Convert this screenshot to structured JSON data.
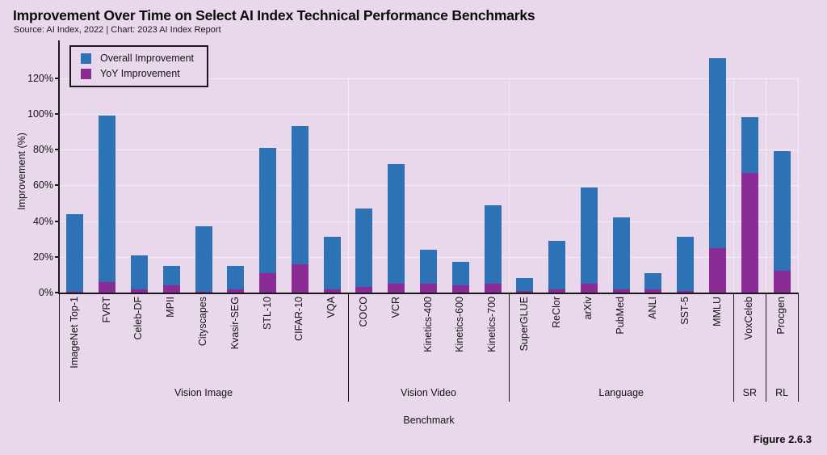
{
  "header": {
    "title": "Improvement Over Time on Select AI Index Technical Performance Benchmarks",
    "subtitle": "Source: AI Index, 2022 | Chart: 2023 AI Index Report"
  },
  "figure_label": "Figure 2.6.3",
  "colors": {
    "overall": "#2d72b5",
    "yoy": "#8b2b96",
    "background": "#e9d7ec"
  },
  "legend": {
    "items": [
      {
        "label": "Overall Improvement",
        "series": "overall"
      },
      {
        "label": "YoY Improvement",
        "series": "yoy"
      }
    ]
  },
  "chart_data": {
    "type": "bar",
    "subtype": "overlaid-stacked",
    "title": "Improvement Over Time on Select AI Index Technical Performance Benchmarks",
    "xlabel": "Benchmark",
    "ylabel": "Improvement (%)",
    "ylim": [
      0,
      135
    ],
    "yticks": [
      0,
      20,
      40,
      60,
      80,
      100,
      120
    ],
    "ytick_suffix": "%",
    "grid": true,
    "legend_position": "top-left",
    "series_names": [
      "Overall Improvement",
      "YoY Improvement"
    ],
    "groups": [
      {
        "name": "Vision Image",
        "benchmarks": [
          {
            "label": "ImageNet Top-1",
            "overall": 44,
            "yoy": 0.5
          },
          {
            "label": "FVRT",
            "overall": 99,
            "yoy": 6
          },
          {
            "label": "Celeb-DF",
            "overall": 21,
            "yoy": 2
          },
          {
            "label": "MPII",
            "overall": 15,
            "yoy": 4
          },
          {
            "label": "Cityscapes",
            "overall": 37,
            "yoy": 0.5
          },
          {
            "label": "Kvasir-SEG",
            "overall": 15,
            "yoy": 2
          },
          {
            "label": "STL-10",
            "overall": 81,
            "yoy": 11
          },
          {
            "label": "CIFAR-10",
            "overall": 93,
            "yoy": 16
          },
          {
            "label": "VQA",
            "overall": 31,
            "yoy": 2
          }
        ]
      },
      {
        "name": "Vision Video",
        "benchmarks": [
          {
            "label": "COCO",
            "overall": 47,
            "yoy": 3
          },
          {
            "label": "VCR",
            "overall": 72,
            "yoy": 5
          },
          {
            "label": "Kinetics-400",
            "overall": 24,
            "yoy": 5
          },
          {
            "label": "Kinetics-600",
            "overall": 17,
            "yoy": 4
          },
          {
            "label": "Kinetics-700",
            "overall": 49,
            "yoy": 5
          }
        ]
      },
      {
        "name": "Language",
        "benchmarks": [
          {
            "label": "SuperGLUE",
            "overall": 8,
            "yoy": 1
          },
          {
            "label": "ReClor",
            "overall": 29,
            "yoy": 2
          },
          {
            "label": "arXiv",
            "overall": 59,
            "yoy": 5
          },
          {
            "label": "PubMed",
            "overall": 42,
            "yoy": 2
          },
          {
            "label": "ANLI",
            "overall": 11,
            "yoy": 2
          },
          {
            "label": "SST-5",
            "overall": 31,
            "yoy": 1
          },
          {
            "label": "MMLU",
            "overall": 131,
            "yoy": 25
          }
        ]
      },
      {
        "name": "SR",
        "benchmarks": [
          {
            "label": "VoxCeleb",
            "overall": 98,
            "yoy": 67
          }
        ]
      },
      {
        "name": "RL",
        "benchmarks": [
          {
            "label": "Procgen",
            "overall": 79,
            "yoy": 12
          }
        ]
      }
    ]
  }
}
